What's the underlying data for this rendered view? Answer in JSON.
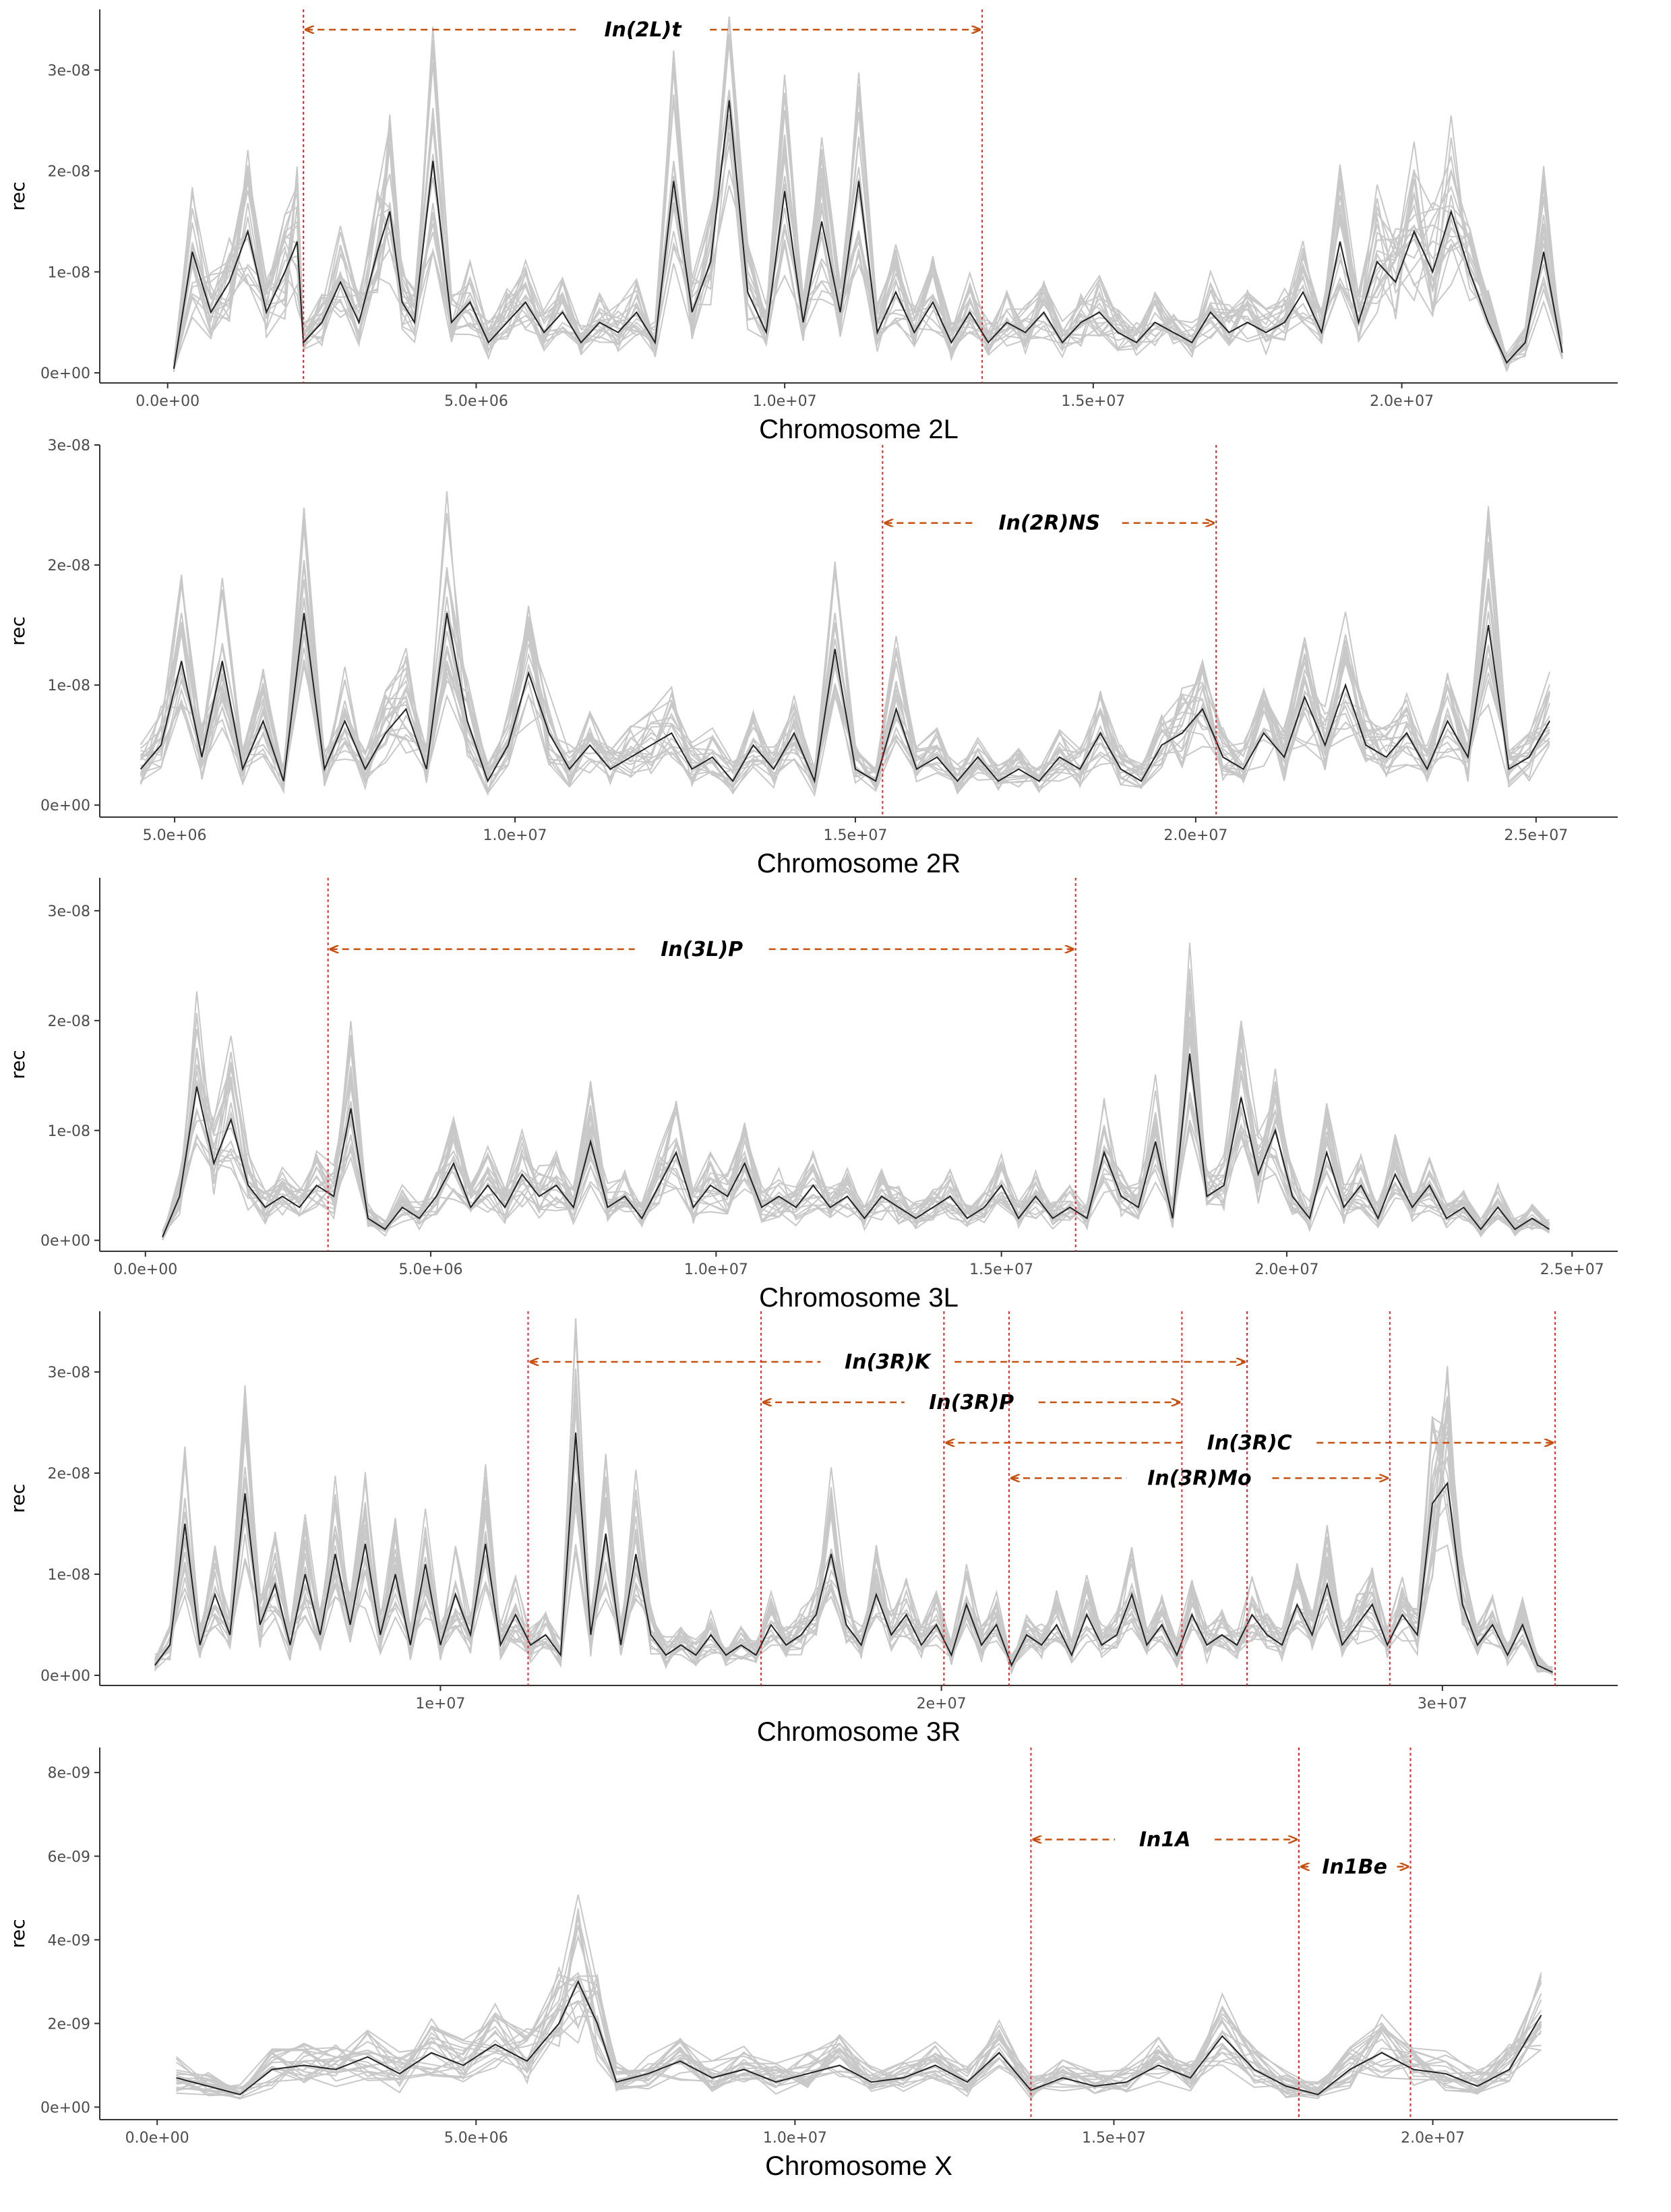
{
  "chart_data": [
    {
      "type": "line",
      "xlabel": "Chromosome 2L",
      "ylabel": "rec",
      "xlim": [
        -1100000,
        23500000
      ],
      "ylim": [
        -1e-09,
        3.6e-08
      ],
      "xticks": [
        0,
        5000000,
        10000000,
        15000000,
        20000000
      ],
      "xtick_labels": [
        "0.0e+00",
        "5.0e+06",
        "1.0e+07",
        "1.5e+07",
        "2.0e+07"
      ],
      "yticks": [
        0,
        1e-08,
        2e-08,
        3e-08
      ],
      "ytick_labels": [
        "0e+00",
        "1e-08",
        "2e-08",
        "3e-08"
      ],
      "mean_x": [
        100000,
        400000,
        700000,
        1000000,
        1300000,
        1600000,
        1900000,
        2100000,
        2200000,
        2500000,
        2800000,
        3100000,
        3400000,
        3600000,
        3800000,
        4000000,
        4300000,
        4600000,
        4900000,
        5200000,
        5500000,
        5800000,
        6100000,
        6400000,
        6700000,
        7000000,
        7300000,
        7600000,
        7900000,
        8200000,
        8500000,
        8800000,
        9100000,
        9400000,
        9700000,
        10000000,
        10300000,
        10600000,
        10900000,
        11200000,
        11500000,
        11800000,
        12100000,
        12400000,
        12700000,
        13000000,
        13300000,
        13600000,
        13900000,
        14200000,
        14500000,
        14800000,
        15100000,
        15400000,
        15700000,
        16000000,
        16300000,
        16600000,
        16900000,
        17200000,
        17500000,
        17800000,
        18100000,
        18400000,
        18700000,
        19000000,
        19300000,
        19600000,
        19900000,
        20200000,
        20500000,
        20800000,
        21100000,
        21400000,
        21700000,
        22000000,
        22300000,
        22600000
      ],
      "mean_y": [
        4e-10,
        1.2e-08,
        6e-09,
        9e-09,
        1.4e-08,
        6e-09,
        1e-08,
        1.3e-08,
        3e-09,
        5e-09,
        9e-09,
        5e-09,
        1.2e-08,
        1.6e-08,
        7e-09,
        5e-09,
        2.1e-08,
        5e-09,
        7e-09,
        3e-09,
        5e-09,
        7e-09,
        4e-09,
        6e-09,
        3e-09,
        5e-09,
        4e-09,
        6e-09,
        3e-09,
        1.9e-08,
        6e-09,
        1.1e-08,
        2.7e-08,
        8e-09,
        4e-09,
        1.8e-08,
        5e-09,
        1.5e-08,
        6e-09,
        1.9e-08,
        4e-09,
        8e-09,
        4e-09,
        7e-09,
        3e-09,
        6e-09,
        3e-09,
        5e-09,
        4e-09,
        6e-09,
        3e-09,
        5e-09,
        6e-09,
        4e-09,
        3e-09,
        5e-09,
        4e-09,
        3e-09,
        6e-09,
        4e-09,
        5e-09,
        4e-09,
        5e-09,
        8e-09,
        4e-09,
        1.3e-08,
        5e-09,
        1.1e-08,
        9e-09,
        1.4e-08,
        1e-08,
        1.6e-08,
        1e-08,
        5e-09,
        1e-09,
        3e-09,
        1.2e-08,
        2e-09
      ],
      "inversions": [
        {
          "name": "In(2L)t",
          "start": 2200000,
          "end": 13200000,
          "level": 3.4e-08
        }
      ]
    },
    {
      "type": "line",
      "xlabel": "Chromosome 2R",
      "ylabel": "rec",
      "xlim": [
        3900000,
        26200000
      ],
      "ylim": [
        -1e-09,
        3e-08
      ],
      "xticks": [
        5000000,
        10000000,
        15000000,
        20000000,
        25000000
      ],
      "xtick_labels": [
        "5.0e+06",
        "1.0e+07",
        "1.5e+07",
        "2.0e+07",
        "2.5e+07"
      ],
      "yticks": [
        0,
        1e-08,
        2e-08,
        3e-08
      ],
      "ytick_labels": [
        "0e+00",
        "1e-08",
        "2e-08",
        "3e-08"
      ],
      "mean_x": [
        4500000,
        4800000,
        5100000,
        5400000,
        5700000,
        6000000,
        6300000,
        6600000,
        6900000,
        7200000,
        7500000,
        7800000,
        8100000,
        8400000,
        8700000,
        9000000,
        9300000,
        9600000,
        9900000,
        10200000,
        10500000,
        10800000,
        11100000,
        11400000,
        11700000,
        12000000,
        12300000,
        12600000,
        12900000,
        13200000,
        13500000,
        13800000,
        14100000,
        14400000,
        14700000,
        15000000,
        15300000,
        15600000,
        15900000,
        16200000,
        16500000,
        16800000,
        17100000,
        17400000,
        17700000,
        18000000,
        18300000,
        18600000,
        18900000,
        19200000,
        19500000,
        19800000,
        20100000,
        20400000,
        20700000,
        21000000,
        21300000,
        21600000,
        21900000,
        22200000,
        22500000,
        22800000,
        23100000,
        23400000,
        23700000,
        24000000,
        24300000,
        24600000,
        24900000,
        25200000
      ],
      "mean_y": [
        3e-09,
        5e-09,
        1.2e-08,
        4e-09,
        1.2e-08,
        3e-09,
        7e-09,
        2e-09,
        1.6e-08,
        3e-09,
        7e-09,
        3e-09,
        6e-09,
        8e-09,
        3e-09,
        1.6e-08,
        7e-09,
        2e-09,
        5e-09,
        1.1e-08,
        6e-09,
        3e-09,
        5e-09,
        3e-09,
        4e-09,
        5e-09,
        6e-09,
        3e-09,
        4e-09,
        2e-09,
        5e-09,
        3e-09,
        6e-09,
        2e-09,
        1.3e-08,
        3e-09,
        2e-09,
        8e-09,
        3e-09,
        4e-09,
        2e-09,
        4e-09,
        2e-09,
        3e-09,
        2e-09,
        4e-09,
        3e-09,
        6e-09,
        3e-09,
        2e-09,
        5e-09,
        6e-09,
        8e-09,
        4e-09,
        3e-09,
        6e-09,
        4e-09,
        9e-09,
        5e-09,
        1e-08,
        5e-09,
        4e-09,
        6e-09,
        3e-09,
        7e-09,
        4e-09,
        1.5e-08,
        3e-09,
        4e-09,
        7e-09
      ],
      "inversions": [
        {
          "name": "In(2R)NS",
          "start": 15400000,
          "end": 20300000,
          "level": 2.35e-08
        }
      ]
    },
    {
      "type": "line",
      "xlabel": "Chromosome 3L",
      "ylabel": "rec",
      "xlim": [
        -800000,
        25800000
      ],
      "ylim": [
        -1e-09,
        3.3e-08
      ],
      "xticks": [
        0,
        5000000,
        10000000,
        15000000,
        20000000,
        25000000
      ],
      "xtick_labels": [
        "0.0e+00",
        "5.0e+06",
        "1.0e+07",
        "1.5e+07",
        "2.0e+07",
        "2.5e+07"
      ],
      "yticks": [
        0,
        1e-08,
        2e-08,
        3e-08
      ],
      "ytick_labels": [
        "0e+00",
        "1e-08",
        "2e-08",
        "3e-08"
      ],
      "mean_x": [
        300000,
        600000,
        900000,
        1200000,
        1500000,
        1800000,
        2100000,
        2400000,
        2700000,
        3000000,
        3300000,
        3600000,
        3900000,
        4200000,
        4500000,
        4800000,
        5100000,
        5400000,
        5700000,
        6000000,
        6300000,
        6600000,
        6900000,
        7200000,
        7500000,
        7800000,
        8100000,
        8400000,
        8700000,
        9000000,
        9300000,
        9600000,
        9900000,
        10200000,
        10500000,
        10800000,
        11100000,
        11400000,
        11700000,
        12000000,
        12300000,
        12600000,
        12900000,
        13200000,
        13500000,
        13800000,
        14100000,
        14400000,
        14700000,
        15000000,
        15300000,
        15600000,
        15900000,
        16200000,
        16500000,
        16800000,
        17100000,
        17400000,
        17700000,
        18000000,
        18300000,
        18600000,
        18900000,
        19200000,
        19500000,
        19800000,
        20100000,
        20400000,
        20700000,
        21000000,
        21300000,
        21600000,
        21900000,
        22200000,
        22500000,
        22800000,
        23100000,
        23400000,
        23700000,
        24000000,
        24300000,
        24600000
      ],
      "mean_y": [
        3e-10,
        4e-09,
        1.4e-08,
        7e-09,
        1.1e-08,
        5e-09,
        3e-09,
        4e-09,
        3e-09,
        5e-09,
        4e-09,
        1.2e-08,
        2e-09,
        1e-09,
        3e-09,
        2e-09,
        4e-09,
        7e-09,
        3e-09,
        5e-09,
        3e-09,
        6e-09,
        4e-09,
        5e-09,
        3e-09,
        9e-09,
        3e-09,
        4e-09,
        2e-09,
        5e-09,
        8e-09,
        3e-09,
        5e-09,
        4e-09,
        7e-09,
        3e-09,
        4e-09,
        3e-09,
        5e-09,
        3e-09,
        4e-09,
        2e-09,
        4e-09,
        3e-09,
        2e-09,
        3e-09,
        4e-09,
        2e-09,
        3e-09,
        5e-09,
        2e-09,
        4e-09,
        2e-09,
        3e-09,
        2e-09,
        8e-09,
        4e-09,
        3e-09,
        9e-09,
        2e-09,
        1.7e-08,
        4e-09,
        5e-09,
        1.3e-08,
        6e-09,
        1e-08,
        4e-09,
        2e-09,
        8e-09,
        3e-09,
        5e-09,
        2e-09,
        6e-09,
        3e-09,
        5e-09,
        2e-09,
        3e-09,
        1e-09,
        3e-09,
        1e-09,
        2e-09,
        1e-09
      ],
      "inversions": [
        {
          "name": "In(3L)P",
          "start": 3200000,
          "end": 16300000,
          "level": 2.65e-08
        }
      ]
    },
    {
      "type": "line",
      "xlabel": "Chromosome 3R",
      "ylabel": "rec",
      "xlim": [
        3200000,
        33500000
      ],
      "ylim": [
        -1e-09,
        3.6e-08
      ],
      "xticks": [
        10000000,
        20000000,
        30000000
      ],
      "xtick_labels": [
        "1e+07",
        "2e+07",
        "3e+07"
      ],
      "yticks": [
        0,
        1e-08,
        2e-08,
        3e-08
      ],
      "ytick_labels": [
        "0e+00",
        "1e-08",
        "2e-08",
        "3e-08"
      ],
      "mean_x": [
        4300000,
        4600000,
        4900000,
        5200000,
        5500000,
        5800000,
        6100000,
        6400000,
        6700000,
        7000000,
        7300000,
        7600000,
        7900000,
        8200000,
        8500000,
        8800000,
        9100000,
        9400000,
        9700000,
        10000000,
        10300000,
        10600000,
        10900000,
        11200000,
        11500000,
        11800000,
        12100000,
        12400000,
        12700000,
        13000000,
        13300000,
        13600000,
        13900000,
        14200000,
        14500000,
        14800000,
        15100000,
        15400000,
        15700000,
        16000000,
        16300000,
        16600000,
        16900000,
        17200000,
        17500000,
        17800000,
        18100000,
        18400000,
        18700000,
        19000000,
        19300000,
        19600000,
        19900000,
        20200000,
        20500000,
        20800000,
        21100000,
        21400000,
        21700000,
        22000000,
        22300000,
        22600000,
        22900000,
        23200000,
        23500000,
        23800000,
        24100000,
        24400000,
        24700000,
        25000000,
        25300000,
        25600000,
        25900000,
        26200000,
        26500000,
        26800000,
        27100000,
        27400000,
        27700000,
        28000000,
        28300000,
        28600000,
        28900000,
        29200000,
        29500000,
        29800000,
        30100000,
        30400000,
        30700000,
        31000000,
        31300000,
        31600000,
        31900000,
        32200000
      ],
      "mean_y": [
        1e-09,
        3e-09,
        1.5e-08,
        3e-09,
        8e-09,
        4e-09,
        1.8e-08,
        5e-09,
        9e-09,
        3e-09,
        1e-08,
        4e-09,
        1.2e-08,
        5e-09,
        1.3e-08,
        4e-09,
        1e-08,
        3e-09,
        1.1e-08,
        3e-09,
        8e-09,
        4e-09,
        1.3e-08,
        3e-09,
        6e-09,
        3e-09,
        4e-09,
        2e-09,
        2.4e-08,
        4e-09,
        1.4e-08,
        3e-09,
        1.2e-08,
        4e-09,
        2e-09,
        3e-09,
        2e-09,
        4e-09,
        2e-09,
        3e-09,
        2e-09,
        5e-09,
        3e-09,
        4e-09,
        6e-09,
        1.2e-08,
        5e-09,
        3e-09,
        8e-09,
        4e-09,
        6e-09,
        3e-09,
        5e-09,
        2e-09,
        7e-09,
        3e-09,
        5e-09,
        1e-09,
        4e-09,
        3e-09,
        5e-09,
        2e-09,
        6e-09,
        3e-09,
        4e-09,
        8e-09,
        3e-09,
        5e-09,
        2e-09,
        6e-09,
        3e-09,
        4e-09,
        3e-09,
        6e-09,
        4e-09,
        3e-09,
        7e-09,
        4e-09,
        9e-09,
        3e-09,
        5e-09,
        7e-09,
        3e-09,
        6e-09,
        4e-09,
        1.7e-08,
        1.9e-08,
        7e-09,
        3e-09,
        5e-09,
        2e-09,
        5e-09,
        1e-09,
        3e-10
      ],
      "inversions": [
        {
          "name": "In(3R)K",
          "start": 11750000,
          "end": 26100000,
          "level": 3.1e-08
        },
        {
          "name": "In(3R)P",
          "start": 16400000,
          "end": 24800000,
          "level": 2.7e-08
        },
        {
          "name": "In(3R)C",
          "start": 20050000,
          "end": 32250000,
          "level": 2.3e-08
        },
        {
          "name": "In(3R)Mo",
          "start": 21350000,
          "end": 28950000,
          "level": 1.95e-08
        }
      ]
    },
    {
      "type": "line",
      "xlabel": "Chromosome X",
      "ylabel": "rec",
      "xlim": [
        -900000,
        22900000
      ],
      "ylim": [
        -3e-10,
        8.6e-09
      ],
      "xticks": [
        0,
        5000000,
        10000000,
        15000000,
        20000000
      ],
      "xtick_labels": [
        "0.0e+00",
        "5.0e+06",
        "1.0e+07",
        "1.5e+07",
        "2.0e+07"
      ],
      "yticks": [
        0,
        2e-09,
        4e-09,
        6e-09,
        8e-09
      ],
      "ytick_labels": [
        "0e+00",
        "2e-09",
        "4e-09",
        "6e-09",
        "8e-09"
      ],
      "mean_x": [
        300000,
        800000,
        1300000,
        1800000,
        2300000,
        2800000,
        3300000,
        3800000,
        4300000,
        4800000,
        5300000,
        5800000,
        6300000,
        6600000,
        6900000,
        7200000,
        7700000,
        8200000,
        8700000,
        9200000,
        9700000,
        10200000,
        10700000,
        11200000,
        11700000,
        12200000,
        12700000,
        13200000,
        13700000,
        14200000,
        14700000,
        15200000,
        15700000,
        16200000,
        16700000,
        17200000,
        17700000,
        18200000,
        18700000,
        19200000,
        19700000,
        20200000,
        20700000,
        21200000,
        21700000
      ],
      "mean_y": [
        7e-10,
        5e-10,
        3e-10,
        9e-10,
        1e-09,
        9e-10,
        1.2e-09,
        8e-10,
        1.3e-09,
        1e-09,
        1.5e-09,
        1.1e-09,
        2e-09,
        3e-09,
        2e-09,
        6e-10,
        8e-10,
        1.1e-09,
        7e-10,
        9e-10,
        6e-10,
        8e-10,
        1e-09,
        6e-10,
        7e-10,
        1e-09,
        6e-10,
        1.3e-09,
        4e-10,
        7e-10,
        5e-10,
        6e-10,
        1e-09,
        7e-10,
        1.7e-09,
        9e-10,
        5e-10,
        3e-10,
        9e-10,
        1.3e-09,
        9e-10,
        8e-10,
        5e-10,
        9e-10,
        2.2e-09
      ],
      "inversions": [
        {
          "name": "In1A",
          "start": 13700000,
          "end": 17900000,
          "level": 6.4e-09
        },
        {
          "name": "In1Be",
          "start": 17900000,
          "end": 19650000,
          "level": 5.75e-09
        }
      ]
    }
  ]
}
